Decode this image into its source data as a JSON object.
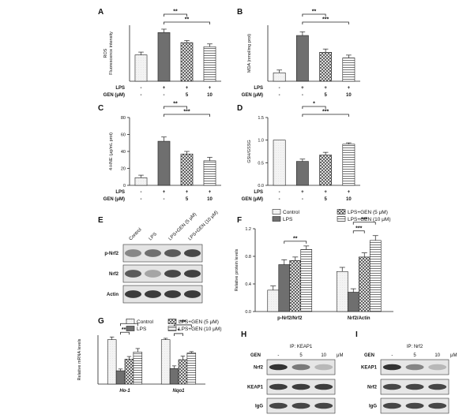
{
  "panels_top": [
    {
      "label": "A",
      "chart_data": {
        "type": "bar",
        "ylabel_lines": [
          "ROS",
          "Fluorescence intensity"
        ],
        "ylim": [
          0,
          5000
        ],
        "yticks": [],
        "categories": [
          "Control",
          "LPS",
          "LPS+GEN 5",
          "LPS+GEN 10"
        ],
        "values": [
          2350,
          4350,
          3450,
          3080
        ],
        "errors": [
          250,
          300,
          180,
          250
        ],
        "condition_rows": [
          {
            "label": "LPS",
            "values": [
              "-",
              "+",
              "+",
              "+"
            ]
          },
          {
            "label": "GEN (μM)",
            "values": [
              "-",
              "-",
              "5",
              "10"
            ]
          }
        ],
        "significance": [
          {
            "from": 1,
            "to": 2,
            "label": "**"
          },
          {
            "from": 1,
            "to": 3,
            "label": "**"
          }
        ]
      }
    },
    {
      "label": "B",
      "chart_data": {
        "type": "bar",
        "ylabel_lines": [
          "MDA (nmol/mg prot)"
        ],
        "ylim": [
          0,
          12
        ],
        "yticks": [],
        "categories": [
          "Control",
          "LPS",
          "LPS+GEN 5",
          "LPS+GEN 10"
        ],
        "values": [
          1.8,
          9.8,
          6.2,
          5.0
        ],
        "errors": [
          0.6,
          0.8,
          0.7,
          0.6
        ],
        "condition_rows": [
          {
            "label": "LPS",
            "values": [
              "-",
              "+",
              "+",
              "+"
            ]
          },
          {
            "label": "GEN (μM)",
            "values": [
              "-",
              "-",
              "5",
              "10"
            ]
          }
        ],
        "significance": [
          {
            "from": 1,
            "to": 2,
            "label": "**"
          },
          {
            "from": 1,
            "to": 3,
            "label": "***"
          }
        ]
      }
    },
    {
      "label": "C",
      "chart_data": {
        "type": "bar",
        "ylabel_lines": [
          "4-HNE (μg/mL prot)"
        ],
        "ylim": [
          0,
          80
        ],
        "yticks": [
          0,
          20,
          40,
          60,
          80
        ],
        "categories": [
          "Control",
          "LPS",
          "LPS+GEN 5",
          "LPS+GEN 10"
        ],
        "values": [
          9,
          52,
          37,
          29
        ],
        "errors": [
          3,
          5,
          3,
          4
        ],
        "condition_rows": [
          {
            "label": "LPS",
            "values": [
              "-",
              "+",
              "+",
              "+"
            ]
          },
          {
            "label": "GEN (μM)",
            "values": [
              "-",
              "-",
              "5",
              "10"
            ]
          }
        ],
        "significance": [
          {
            "from": 1,
            "to": 2,
            "label": "**"
          },
          {
            "from": 1,
            "to": 3,
            "label": "***"
          }
        ]
      }
    },
    {
      "label": "D",
      "chart_data": {
        "type": "bar",
        "ylabel_lines": [
          "GSH/GSSG"
        ],
        "ylim": [
          0,
          1.5
        ],
        "yticks": [
          0.0,
          0.5,
          1.0,
          1.5
        ],
        "tick_decimals": 1,
        "categories": [
          "Control",
          "LPS",
          "LPS+GEN 5",
          "LPS+GEN 10"
        ],
        "values": [
          1.0,
          0.53,
          0.67,
          0.91
        ],
        "errors": [
          0.0,
          0.05,
          0.06,
          0.03
        ],
        "condition_rows": [
          {
            "label": "LPS",
            "values": [
              "-",
              "+",
              "+",
              "+"
            ]
          },
          {
            "label": "GEN (μM)",
            "values": [
              "-",
              "-",
              "5",
              "10"
            ]
          }
        ],
        "significance": [
          {
            "from": 1,
            "to": 2,
            "label": "*"
          },
          {
            "from": 1,
            "to": 3,
            "label": "***"
          }
        ]
      }
    }
  ],
  "panel_E": {
    "label": "E",
    "lanes": [
      "Control",
      "LPS",
      "LPS+GEN (5 μM)",
      "LPS+GEN (10 μM)"
    ],
    "rows": [
      {
        "name": "p-Nrf2",
        "intensity": [
          0.5,
          0.62,
          0.72,
          0.82
        ]
      },
      {
        "name": "Nrf2",
        "intensity": [
          0.72,
          0.35,
          0.82,
          0.85
        ]
      },
      {
        "name": "Actin",
        "intensity": [
          0.88,
          0.88,
          0.88,
          0.88
        ]
      }
    ]
  },
  "panel_F": {
    "label": "F",
    "legend": [
      "Control",
      "LPS+GEN (5 μM)",
      "LPS",
      "LPS+GEN (10 μM)"
    ],
    "chart_data": {
      "type": "bar",
      "ylabel": "Relative protein levels",
      "ylim": [
        0,
        1.2
      ],
      "yticks": [
        0.0,
        0.4,
        0.8,
        1.2
      ],
      "tick_decimals": 1,
      "categories": [
        "p-Nrf2/Nrf2",
        "Nrf2/Actin"
      ],
      "series": [
        {
          "name": "Control",
          "values": [
            0.31,
            0.58
          ],
          "errors": [
            0.06,
            0.06
          ]
        },
        {
          "name": "LPS",
          "values": [
            0.68,
            0.28
          ],
          "errors": [
            0.07,
            0.05
          ]
        },
        {
          "name": "LPS+GEN (5 μM)",
          "values": [
            0.74,
            0.79
          ],
          "errors": [
            0.05,
            0.06
          ]
        },
        {
          "name": "LPS+GEN (10 μM)",
          "values": [
            0.9,
            1.03
          ],
          "errors": [
            0.05,
            0.07
          ]
        }
      ],
      "significance": [
        {
          "group": 0,
          "from": 1,
          "to": 3,
          "label": "**"
        },
        {
          "group": 1,
          "from": 1,
          "to": 2,
          "label": "***"
        },
        {
          "group": 1,
          "from": 1,
          "to": 3,
          "label": "***"
        }
      ]
    }
  },
  "panel_G": {
    "label": "G",
    "legend": [
      "Control",
      "LPS+GEN (5 μM)",
      "LPS",
      "LPS+GEN (10 μM)"
    ],
    "chart_data": {
      "type": "bar",
      "ylabel": "Relative mRNA levels",
      "ylim": [
        0,
        1.1
      ],
      "yticks": [],
      "categories": [
        "Ho-1",
        "Nqo1"
      ],
      "series": [
        {
          "name": "Control",
          "values": [
            1.0,
            1.0
          ],
          "errors": [
            0.06,
            0.03
          ]
        },
        {
          "name": "LPS",
          "values": [
            0.3,
            0.35
          ],
          "errors": [
            0.04,
            0.06
          ]
        },
        {
          "name": "LPS+GEN (5 μM)",
          "values": [
            0.56,
            0.55
          ],
          "errors": [
            0.06,
            0.08
          ]
        },
        {
          "name": "LPS+GEN (10 μM)",
          "values": [
            0.72,
            0.7
          ],
          "errors": [
            0.08,
            0.03
          ]
        }
      ],
      "significance": [
        {
          "group": 0,
          "from": 1,
          "to": 2,
          "label": "***"
        },
        {
          "group": 0,
          "from": 1,
          "to": 3,
          "label": "***"
        },
        {
          "group": 1,
          "from": 1,
          "to": 2,
          "label": "*"
        },
        {
          "group": 1,
          "from": 1,
          "to": 3,
          "label": "***"
        }
      ]
    }
  },
  "panel_H": {
    "label": "H",
    "ip": "IP: KEAP1",
    "gen_label": "GEN",
    "doses": [
      "-",
      "5",
      "10"
    ],
    "unit": "μM",
    "rows": [
      {
        "name": "Nrf2",
        "intensity": [
          0.9,
          0.55,
          0.25
        ]
      },
      {
        "name": "KEAP1",
        "intensity": [
          0.85,
          0.85,
          0.85
        ]
      },
      {
        "name": "IgG",
        "intensity": [
          0.8,
          0.8,
          0.8
        ]
      }
    ]
  },
  "panel_I": {
    "label": "I",
    "ip": "IP: Nrf2",
    "gen_label": "GEN",
    "doses": [
      "-",
      "5",
      "10"
    ],
    "unit": "μM",
    "rows": [
      {
        "name": "KEAP1",
        "intensity": [
          0.9,
          0.5,
          0.25
        ]
      },
      {
        "name": "Nrf2",
        "intensity": [
          0.8,
          0.8,
          0.8
        ]
      },
      {
        "name": "IgG",
        "intensity": [
          0.8,
          0.8,
          0.8
        ]
      }
    ]
  },
  "style": {
    "fills": [
      "pat-light",
      "#6f6f6f",
      "pat-cross",
      "pat-hline"
    ]
  }
}
